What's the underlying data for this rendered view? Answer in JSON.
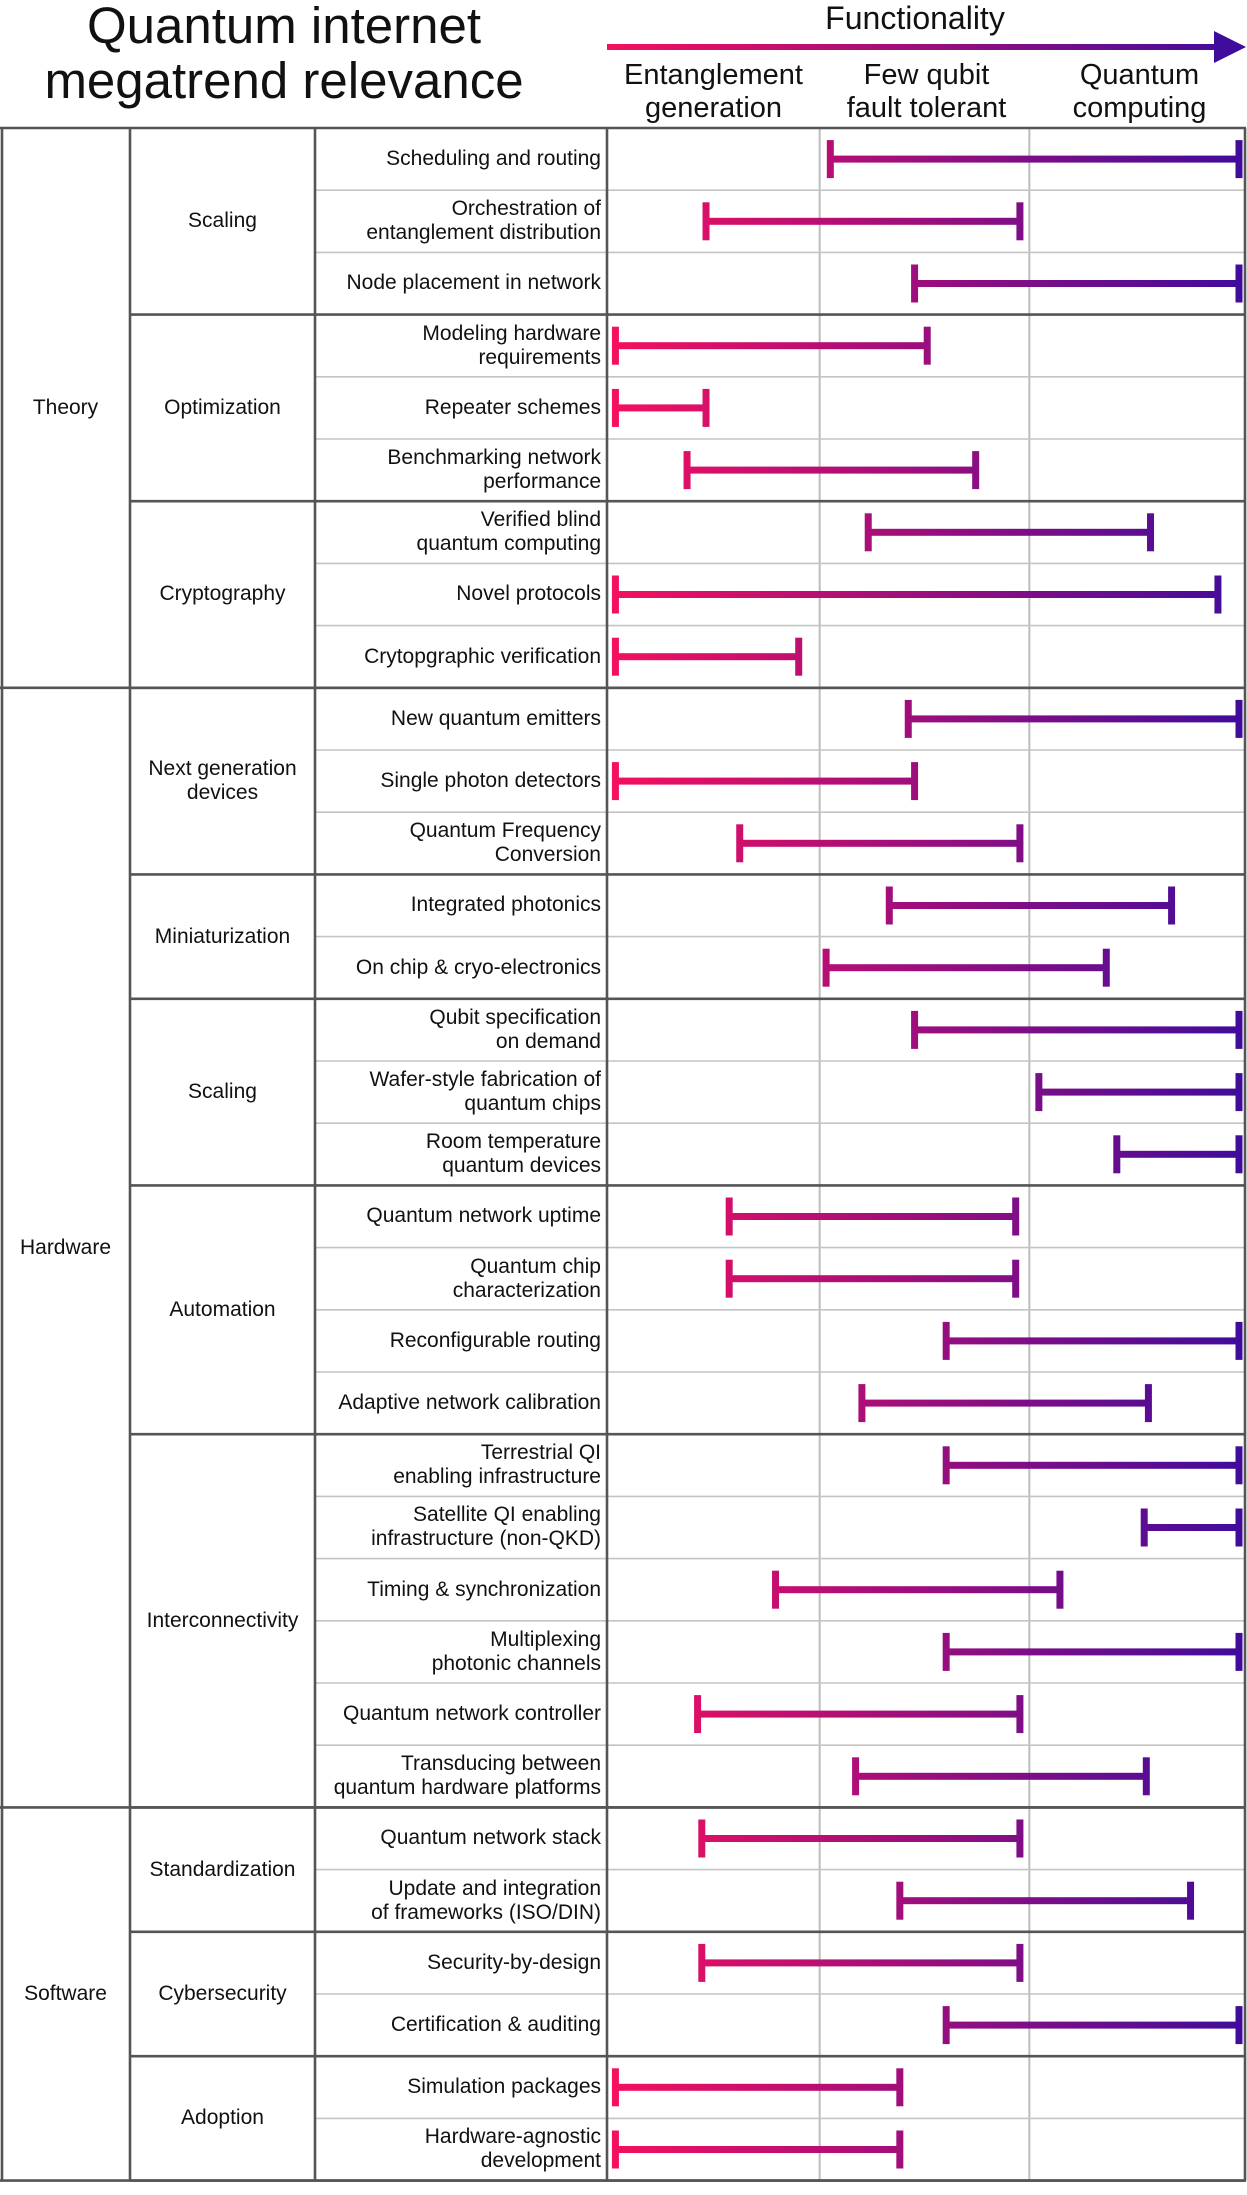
{
  "chart_data": {
    "type": "range-bar",
    "title": "Quantum internet\nmegatrend relevance",
    "axis_title": "Functionality",
    "gradient_colors": [
      "#f5105e",
      "#3f0c9c"
    ],
    "columns": [
      "Entanglement\ngeneration",
      "Few qubit\nfault tolerant",
      "Quantum\ncomputing"
    ],
    "xlim": [
      0,
      3
    ],
    "grid": true,
    "categories": [
      {
        "name": "Theory",
        "subcategories": [
          {
            "name": "Scaling",
            "items": [
              {
                "label": "Scheduling and routing",
                "start": 1.06,
                "end": 3.0
              },
              {
                "label": "Orchestration of\nentanglement distribution",
                "start": 0.47,
                "end": 1.96
              },
              {
                "label": "Node placement in network",
                "start": 1.46,
                "end": 3.0
              }
            ]
          },
          {
            "name": "Optimization",
            "items": [
              {
                "label": "Modeling hardware\nrequirements",
                "start": 0.04,
                "end": 1.52
              },
              {
                "label": "Repeater schemes",
                "start": 0.04,
                "end": 0.47
              },
              {
                "label": "Benchmarking network\nperformance",
                "start": 0.38,
                "end": 1.75
              }
            ]
          },
          {
            "name": "Cryptography",
            "items": [
              {
                "label": "Verified blind\nquantum computing",
                "start": 1.24,
                "end": 2.58
              },
              {
                "label": "Novel protocols",
                "start": 0.04,
                "end": 2.9
              },
              {
                "label": "Crytopgraphic verification",
                "start": 0.04,
                "end": 0.91
              }
            ]
          }
        ]
      },
      {
        "name": "Hardware",
        "subcategories": [
          {
            "name": "Next generation\ndevices",
            "items": [
              {
                "label": "New quantum emitters",
                "start": 1.43,
                "end": 3.0
              },
              {
                "label": "Single photon detectors",
                "start": 0.04,
                "end": 1.46
              },
              {
                "label": "Quantum Frequency\nConversion",
                "start": 0.63,
                "end": 1.96
              }
            ]
          },
          {
            "name": "Miniaturization",
            "items": [
              {
                "label": "Integrated photonics",
                "start": 1.34,
                "end": 2.68
              },
              {
                "label": "On chip & cryo-electronics",
                "start": 1.04,
                "end": 2.37
              }
            ]
          },
          {
            "name": "Scaling",
            "items": [
              {
                "label": "Qubit specification\non demand",
                "start": 1.46,
                "end": 3.0
              },
              {
                "label": "Wafer-style fabrication of\nquantum chips",
                "start": 2.05,
                "end": 3.0
              },
              {
                "label": "Room temperature\nquantum devices",
                "start": 2.42,
                "end": 3.0
              }
            ]
          },
          {
            "name": "Automation",
            "items": [
              {
                "label": "Quantum network uptime",
                "start": 0.58,
                "end": 1.94
              },
              {
                "label": "Quantum chip\ncharacterization",
                "start": 0.58,
                "end": 1.94
              },
              {
                "label": "Reconfigurable routing",
                "start": 1.61,
                "end": 3.0
              },
              {
                "label": "Adaptive network calibration",
                "start": 1.21,
                "end": 2.57
              }
            ]
          },
          {
            "name": "Interconnectivity",
            "items": [
              {
                "label": "Terrestrial QI\nenabling infrastructure",
                "start": 1.61,
                "end": 3.0
              },
              {
                "label": "Satellite QI enabling\ninfrastructure (non-QKD)",
                "start": 2.55,
                "end": 3.0
              },
              {
                "label": "Timing & synchronization",
                "start": 0.8,
                "end": 2.15
              },
              {
                "label": "Multiplexing\nphotonic channels",
                "start": 1.61,
                "end": 3.0
              },
              {
                "label": "Quantum network controller",
                "start": 0.43,
                "end": 1.96
              },
              {
                "label": "Transducing between\nquantum hardware platforms",
                "start": 1.18,
                "end": 2.56
              }
            ]
          }
        ]
      },
      {
        "name": "Software",
        "subcategories": [
          {
            "name": "Standardization",
            "items": [
              {
                "label": "Quantum network stack",
                "start": 0.45,
                "end": 1.96
              },
              {
                "label": "Update and integration\nof frameworks (ISO/DIN)",
                "start": 1.39,
                "end": 2.77
              }
            ]
          },
          {
            "name": "Cybersecurity",
            "items": [
              {
                "label": "Security-by-design",
                "start": 0.45,
                "end": 1.96
              },
              {
                "label": "Certification & auditing",
                "start": 1.61,
                "end": 3.0
              }
            ]
          },
          {
            "name": "Adoption",
            "items": [
              {
                "label": "Simulation packages",
                "start": 0.04,
                "end": 1.39
              },
              {
                "label": "Hardware-agnostic\ndevelopment",
                "start": 0.04,
                "end": 1.39
              }
            ]
          }
        ]
      }
    ]
  }
}
